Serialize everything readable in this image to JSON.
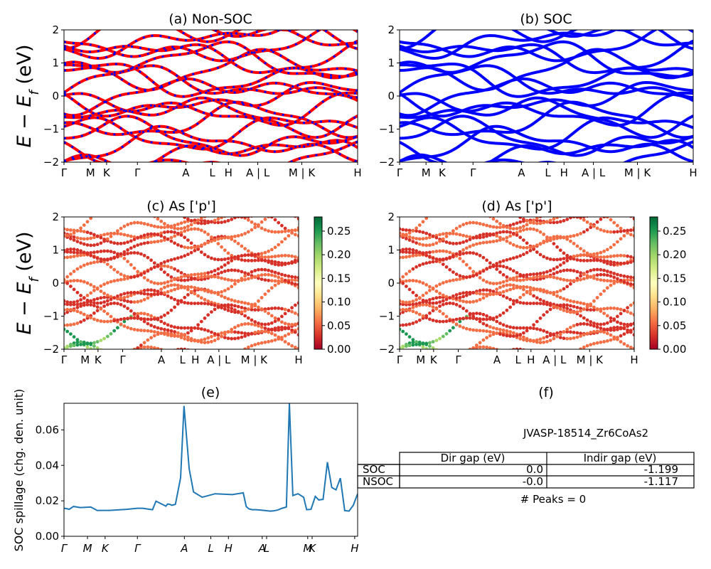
{
  "panels": {
    "a": {
      "title": "(a) Non-SOC"
    },
    "b": {
      "title": "(b) SOC"
    },
    "c": {
      "title": "(c)  As ['p']"
    },
    "d": {
      "title": "(d) As ['p']"
    },
    "e": {
      "title": "(e)"
    },
    "f": {
      "title": "(f)"
    }
  },
  "band_axis": {
    "ylabel": "E − E_f (eV)",
    "ylim": [
      -2,
      2
    ],
    "yticks": [
      "2",
      "1",
      "0",
      "−1",
      "−2"
    ],
    "kpath_labels": [
      "Γ",
      "M",
      "K",
      "Γ",
      "A",
      "L",
      "H",
      "A | L",
      "M | K",
      "H"
    ]
  },
  "colorbar": {
    "colormap": "RdYlGn",
    "range": [
      0,
      0.28
    ],
    "ticks": [
      "0.25",
      "0.20",
      "0.15",
      "0.10",
      "0.05",
      "0.00"
    ]
  },
  "spillage_axis": {
    "ylabel": "SOC spillage (chg. den. unit)",
    "ylim": [
      0,
      0.075
    ],
    "yticks": [
      "0.06",
      "0.04",
      "0.02",
      "0.00"
    ],
    "kpath_labels": [
      "Γ",
      "M",
      "K",
      "Γ",
      "A",
      "L",
      "H",
      "A",
      "L",
      "M",
      "K",
      "H"
    ]
  },
  "info": {
    "system": "JVASP-18514_Zr6CoAs2",
    "col_dir": "Dir gap (eV)",
    "col_indir": "Indir gap (eV)",
    "rows": [
      {
        "label": "SOC",
        "dir": "0.0",
        "indir": "-1.199"
      },
      {
        "label": "NSOC",
        "dir": "-0.0",
        "indir": "-1.117"
      }
    ],
    "peaks": "# Peaks = 0"
  },
  "colors": {
    "nsoc": "#ff0000",
    "soc": "#0000ff",
    "spillage": "#1f77b4"
  },
  "chart_data": [
    {
      "type": "line",
      "panel": "a",
      "title": "(a) Non-SOC",
      "ylabel": "E − E_f (eV)",
      "ylim": [
        -2,
        2
      ],
      "description_series": [
        "NSOC bands (red)",
        "SOC bands (blue dashed)"
      ]
    },
    {
      "type": "line",
      "panel": "b",
      "title": "(b) SOC",
      "ylabel": "E − E_f (eV)",
      "ylim": [
        -2,
        2
      ]
    },
    {
      "type": "scatter",
      "panel": "c",
      "title": "(c)  As ['p']",
      "ylim": [
        -2,
        2
      ],
      "colorbar_range": [
        0,
        0.28
      ]
    },
    {
      "type": "scatter",
      "panel": "d",
      "title": "(d) As ['p']",
      "ylim": [
        -2,
        2
      ],
      "colorbar_range": [
        0,
        0.28
      ]
    },
    {
      "type": "line",
      "panel": "e",
      "title": "(e)",
      "ylabel": "SOC spillage (chg. den. unit)",
      "ylim": [
        0,
        0.075
      ],
      "x": [
        0,
        0.08,
        0.12,
        0.22,
        0.38,
        0.62,
        0.77,
        0.85,
        1.05,
        1.45,
        1.7,
        1.82,
        2.05,
        2.13,
        2.36,
        2.4,
        2.45,
        2.5,
        2.58,
        2.7,
        2.78,
        2.9,
        3.0,
        3.2,
        3.5,
        3.9,
        4.15,
        4.22,
        4.28,
        4.36,
        4.44,
        4.55,
        4.65,
        4.78,
        4.85,
        4.95,
        5.05,
        5.15,
        5.22,
        5.3,
        5.42,
        5.55,
        5.62,
        5.72,
        5.82,
        5.9,
        6.0,
        6.1,
        6.2,
        6.3,
        6.4,
        6.5,
        6.6,
        6.7,
        6.8
      ],
      "values": [
        0.0158,
        0.0155,
        0.0152,
        0.0168,
        0.0162,
        0.0165,
        0.0145,
        0.0146,
        0.0146,
        0.0152,
        0.0158,
        0.0158,
        0.015,
        0.0198,
        0.017,
        0.0182,
        0.018,
        0.0175,
        0.018,
        0.033,
        0.0735,
        0.038,
        0.025,
        0.022,
        0.024,
        0.0235,
        0.0245,
        0.0168,
        0.0155,
        0.015,
        0.015,
        0.0148,
        0.0145,
        0.0142,
        0.0143,
        0.0148,
        0.0158,
        0.0165,
        0.075,
        0.023,
        0.024,
        0.022,
        0.015,
        0.0152,
        0.0225,
        0.0205,
        0.0208,
        0.0418,
        0.0275,
        0.0262,
        0.0328,
        0.0145,
        0.0142,
        0.0175,
        0.024
      ]
    }
  ]
}
